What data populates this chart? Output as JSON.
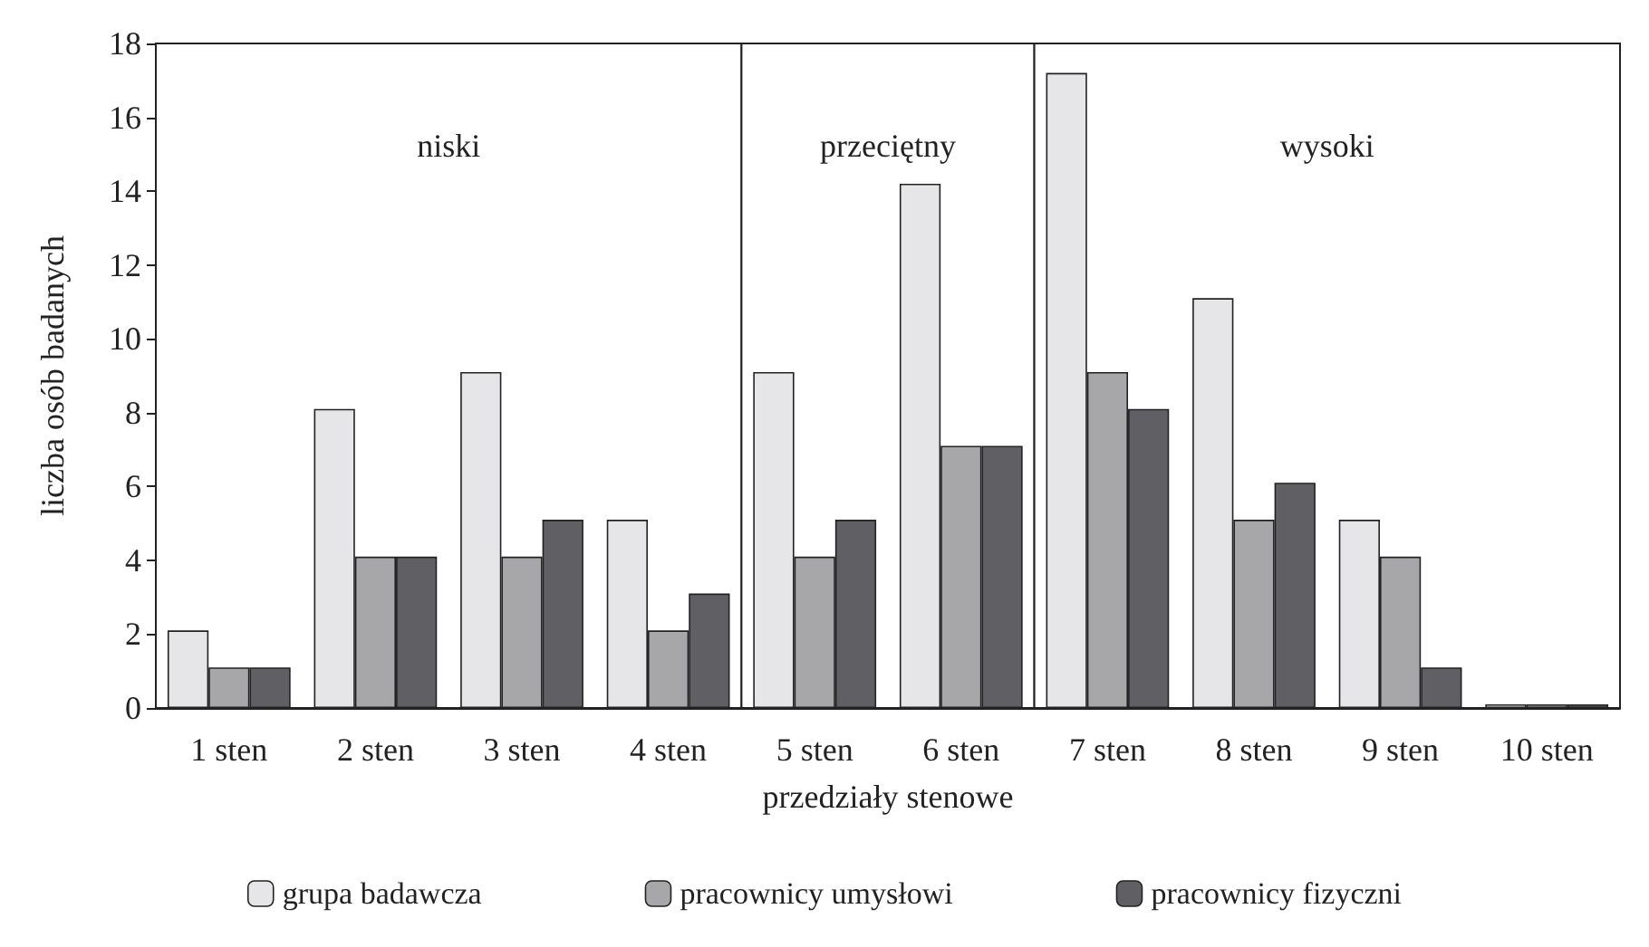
{
  "chart_data": {
    "type": "bar",
    "xlabel": "przedziały stenowe",
    "ylabel": "liczba osób badanych",
    "categories": [
      "1 sten",
      "2 sten",
      "3 sten",
      "4 sten",
      "5 sten",
      "6 sten",
      "7 sten",
      "8 sten",
      "9 sten",
      "10 sten"
    ],
    "series": [
      {
        "name": "grupa badawcza",
        "color": "#e6e6e8",
        "values": [
          2.1,
          8.1,
          9.1,
          5.1,
          9.1,
          14.2,
          17.2,
          11.1,
          5.1,
          0.1
        ]
      },
      {
        "name": "pracownicy umysłowi",
        "color": "#a7a7aa",
        "values": [
          1.1,
          4.1,
          4.1,
          2.1,
          4.1,
          7.1,
          9.1,
          5.1,
          4.1,
          0.1
        ]
      },
      {
        "name": "pracownicy fizyczni",
        "color": "#606064",
        "values": [
          1.1,
          4.1,
          5.1,
          3.1,
          5.1,
          7.1,
          8.1,
          6.1,
          1.1,
          0.1
        ]
      }
    ],
    "bands": [
      {
        "axis": "x",
        "from": "1 sten",
        "to": "4 sten",
        "label": "niski",
        "color": "#ffffff"
      },
      {
        "axis": "x",
        "from": "5 sten",
        "to": "6 sten",
        "label": "przeciętny",
        "color": "#ffffff"
      },
      {
        "axis": "x",
        "from": "7 sten",
        "to": "10 sten",
        "label": "wysoki",
        "color": "#ffffff"
      }
    ],
    "ylim": [
      0,
      18
    ],
    "yticks": [
      0,
      2,
      4,
      6,
      8,
      10,
      12,
      14,
      16,
      18
    ],
    "legend": "bottom"
  }
}
